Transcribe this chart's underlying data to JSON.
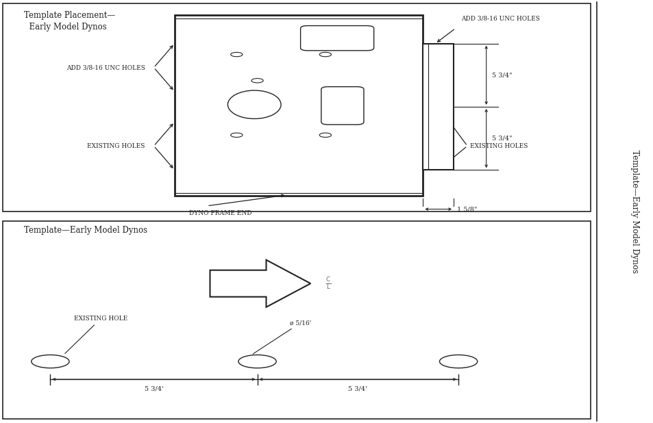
{
  "line_color": "#222222",
  "title_top": "Template Placement—\n  Early Model Dynos",
  "title_bottom": "Template—Early Model Dynos",
  "sidebar_text": "Template—Early Model Dynos",
  "label_add_left": "ADD 3/8-16 UNC HOLES",
  "label_existing_left": "EXISTING HOLES",
  "label_add_right": "ADD 3/8-16 UNC HOLES",
  "label_existing_right": "EXISTING HOLES",
  "label_dyno_frame": "DYNO FRAME END",
  "dim_534_top": "5 3/4\"",
  "dim_534_mid": "5 3/4\"",
  "dim_158": "1 5/8\"",
  "label_phi": "ø 5/16'",
  "label_existing_hole": "EXISTING HOLE",
  "dim_534_left": "5 3/4'",
  "dim_534_right": "5 3/4'"
}
